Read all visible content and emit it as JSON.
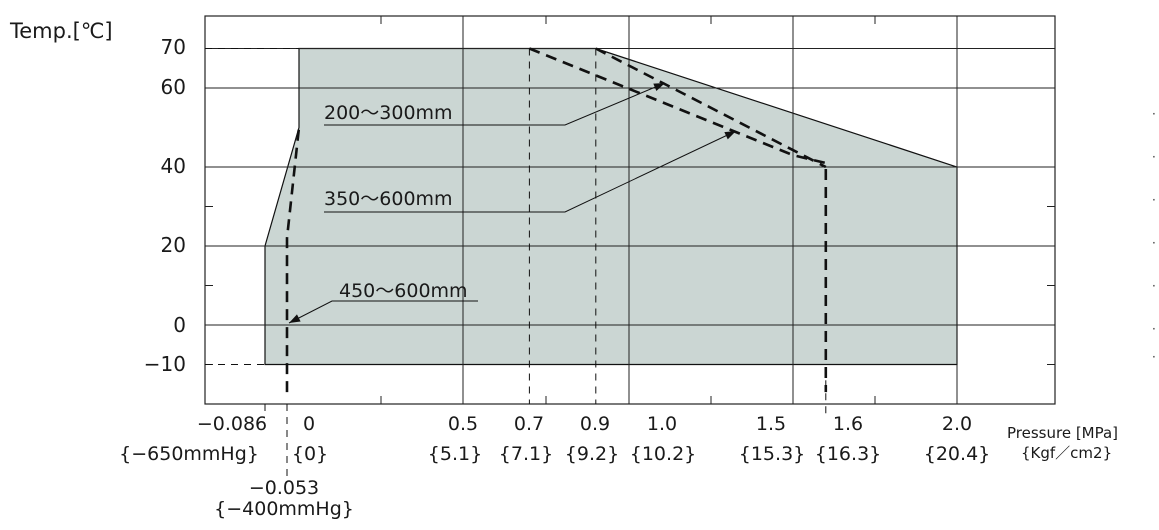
{
  "y_title": "Temp.[℃]",
  "x_title_line1": "Pressure [MPa]",
  "x_title_line2": "{Kgf／cm2}",
  "y_ticks": [
    {
      "value": 70,
      "label": "70"
    },
    {
      "value": 60,
      "label": "60"
    },
    {
      "value": 40,
      "label": "40"
    },
    {
      "value": 20,
      "label": "20"
    },
    {
      "value": 0,
      "label": "0"
    },
    {
      "value": -10,
      "label": "−10"
    }
  ],
  "x_ticks": [
    {
      "value": -0.086,
      "label": "−0.086",
      "sub": "{−650mmHg}"
    },
    {
      "value": 0,
      "label": "0",
      "sub": "{0}"
    },
    {
      "value": 0.5,
      "label": "0.5",
      "sub": "{5.1}"
    },
    {
      "value": 0.7,
      "label": "0.7",
      "sub": "{7.1}"
    },
    {
      "value": 0.9,
      "label": "0.9",
      "sub": "{9.2}"
    },
    {
      "value": 1.0,
      "label": "1.0",
      "sub": "{10.2}"
    },
    {
      "value": 1.5,
      "label": "1.5",
      "sub": "{15.3}"
    },
    {
      "value": 1.6,
      "label": "1.6",
      "sub": "{16.3}"
    },
    {
      "value": 2.0,
      "label": "2.0",
      "sub": "{20.4}"
    }
  ],
  "x_extra_tick": {
    "value": -0.053,
    "label": "−0.053",
    "sub": "{−400mmHg}"
  },
  "annotations": [
    {
      "text": "200～300mm"
    },
    {
      "text": "350～600mm"
    },
    {
      "text": "450～600mm"
    }
  ],
  "colors": {
    "region_fill": "#cbd6d3",
    "line": "#111111",
    "grid": "#222222"
  },
  "edge_marks": [
    "·",
    "·",
    "·",
    "·",
    "·",
    "·",
    "·"
  ],
  "chart_data": {
    "type": "area",
    "xlabel": "Pressure [MPa] {Kgf／cm2}",
    "ylabel": "Temp.[℃]",
    "xlim": [
      -0.086,
      2.0
    ],
    "ylim": [
      -10,
      70
    ],
    "grid": true,
    "series": [
      {
        "name": "",
        "style": "filled region (solid outline)",
        "points": [
          [
            -0.086,
            -10
          ],
          [
            -0.086,
            20
          ],
          [
            0,
            50
          ],
          [
            0,
            70
          ],
          [
            0.9,
            70
          ],
          [
            2.0,
            40
          ],
          [
            2.0,
            -10
          ]
        ]
      },
      {
        "name": "200～300mm",
        "style": "dashed",
        "points": [
          [
            0.9,
            70
          ],
          [
            1.6,
            40
          ]
        ]
      },
      {
        "name": "350～600mm",
        "style": "dashed",
        "points": [
          [
            0.7,
            70
          ],
          [
            1.5,
            43
          ],
          [
            1.6,
            41
          ],
          [
            1.6,
            -17
          ]
        ]
      },
      {
        "name": "450～600mm",
        "style": "dashed",
        "points": [
          [
            -0.053,
            -17
          ],
          [
            -0.053,
            20
          ],
          [
            -0.053,
            22
          ],
          [
            0,
            50
          ]
        ]
      }
    ],
    "reference_lines": [
      {
        "axis": "x",
        "value": 0.7,
        "style": "dashed"
      },
      {
        "axis": "x",
        "value": 0.9,
        "style": "dashed"
      },
      {
        "axis": "x",
        "value": 1.6,
        "style": "dashed"
      },
      {
        "axis": "x",
        "value": -0.086,
        "style": "dashed"
      },
      {
        "axis": "x",
        "value": -0.053,
        "style": "dashed"
      },
      {
        "axis": "y",
        "value": 70,
        "style": "dashed"
      },
      {
        "axis": "y",
        "value": -10,
        "style": "dashed"
      }
    ]
  }
}
